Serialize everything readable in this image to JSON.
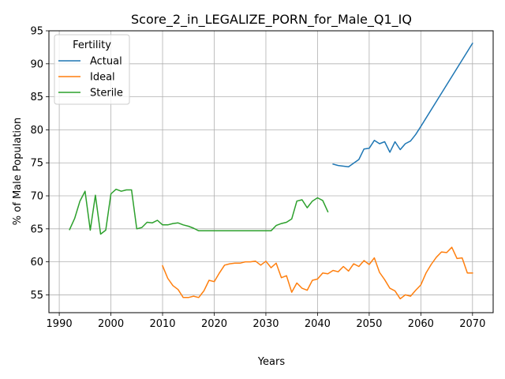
{
  "chart_data": {
    "type": "line",
    "title": "Score_2_in_LEGALIZE_PORN_for_Male_Q1_IQ",
    "xlabel": "Years",
    "ylabel": "% of Male Population",
    "xlim": [
      1988,
      2074
    ],
    "ylim": [
      52.3,
      95
    ],
    "xticks": [
      1990,
      2000,
      2010,
      2020,
      2030,
      2040,
      2050,
      2060,
      2070
    ],
    "yticks": [
      55,
      60,
      65,
      70,
      75,
      80,
      85,
      90,
      95
    ],
    "grid": true,
    "legend": {
      "title": "Fertility",
      "position": "top-left"
    },
    "series": [
      {
        "name": "Actual",
        "color": "#1f77b4",
        "x": [
          2043,
          2044,
          2046,
          2048,
          2049,
          2050,
          2051,
          2052,
          2053,
          2054,
          2055,
          2056,
          2057,
          2058,
          2059,
          2060,
          2070
        ],
        "y": [
          74.8,
          74.6,
          74.4,
          75.5,
          77.1,
          77.2,
          78.4,
          77.9,
          78.2,
          76.6,
          78.2,
          77.0,
          77.9,
          78.3,
          79.3,
          80.5,
          93.1
        ]
      },
      {
        "name": "Ideal",
        "color": "#ff7f0e",
        "x": [
          2010,
          2011,
          2012,
          2013,
          2014,
          2015,
          2016,
          2017,
          2018,
          2019,
          2020,
          2021,
          2022,
          2023,
          2024,
          2025,
          2026,
          2027,
          2028,
          2029,
          2030,
          2031,
          2032,
          2033,
          2034,
          2035,
          2036,
          2037,
          2038,
          2039,
          2040,
          2041,
          2042,
          2043,
          2044,
          2045,
          2046,
          2047,
          2048,
          2049,
          2050,
          2051,
          2052,
          2053,
          2054,
          2055,
          2056,
          2057,
          2058,
          2059,
          2060,
          2061,
          2062,
          2063,
          2064,
          2065,
          2066,
          2067,
          2068,
          2069,
          2070
        ],
        "y": [
          59.4,
          57.5,
          56.4,
          55.8,
          54.6,
          54.6,
          54.8,
          54.6,
          55.6,
          57.2,
          57.0,
          58.3,
          59.5,
          59.7,
          59.8,
          59.8,
          60.0,
          60.0,
          60.1,
          59.5,
          60.1,
          59.1,
          59.8,
          57.6,
          57.9,
          55.4,
          56.8,
          56.0,
          55.7,
          57.2,
          57.4,
          58.3,
          58.2,
          58.7,
          58.5,
          59.3,
          58.6,
          59.7,
          59.3,
          60.2,
          59.6,
          60.6,
          58.4,
          57.3,
          56.0,
          55.6,
          54.4,
          55.0,
          54.8,
          55.7,
          56.5,
          58.3,
          59.6,
          60.7,
          61.5,
          61.4,
          62.2,
          60.5,
          60.6,
          58.3,
          58.3
        ]
      },
      {
        "name": "Sterile",
        "color": "#2ca02c",
        "x": [
          1992,
          1993,
          1994,
          1995,
          1996,
          1997,
          1998,
          1999,
          2000,
          2001,
          2002,
          2003,
          2004,
          2005,
          2006,
          2007,
          2008,
          2009,
          2010,
          2011,
          2012,
          2013,
          2014,
          2015,
          2016,
          2017,
          2018,
          2019,
          2020,
          2021,
          2022,
          2023,
          2024,
          2025,
          2026,
          2027,
          2028,
          2029,
          2030,
          2031,
          2032,
          2033,
          2034,
          2035,
          2036,
          2037,
          2038,
          2039,
          2040,
          2041,
          2042
        ],
        "y": [
          64.9,
          66.6,
          69.2,
          70.7,
          64.8,
          70.1,
          64.2,
          64.8,
          70.3,
          71.0,
          70.7,
          70.9,
          70.9,
          65.0,
          65.2,
          66.0,
          65.9,
          66.3,
          65.6,
          65.6,
          65.8,
          65.9,
          65.6,
          65.4,
          65.1,
          64.7,
          64.7,
          64.7,
          64.7,
          64.7,
          64.7,
          64.7,
          64.7,
          64.7,
          64.7,
          64.7,
          64.7,
          64.7,
          64.7,
          64.7,
          65.5,
          65.8,
          66.0,
          66.5,
          69.2,
          69.4,
          68.2,
          69.2,
          69.7,
          69.3,
          67.6
        ]
      }
    ]
  }
}
